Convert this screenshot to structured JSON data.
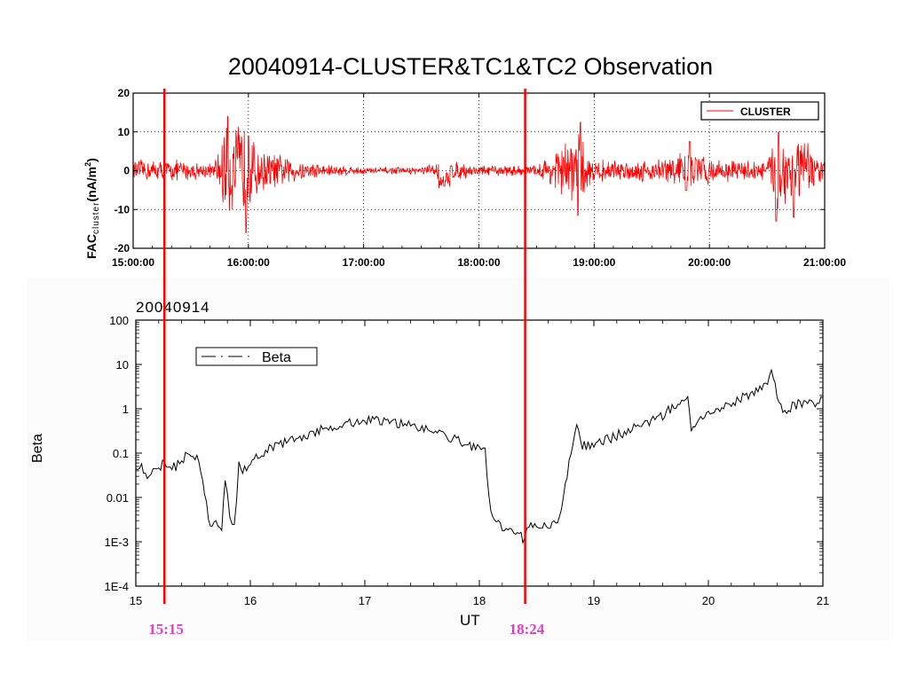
{
  "title": "20040914-CLUSTER&TC1&TC2 Observation",
  "chart_data": [
    {
      "type": "line",
      "name_id": "fac",
      "ylabel": {
        "main": "FAC",
        "sub": "cluster",
        "unit": "(nA/m",
        "sup": "2",
        "close": ")"
      },
      "ylim": [
        -20,
        20
      ],
      "xlim": [
        15,
        21
      ],
      "yticks": [
        "20",
        "10",
        "0",
        "-10",
        "-20"
      ],
      "yticks_values": [
        20,
        10,
        0,
        -10,
        -20
      ],
      "xticks": [
        "15:00:00",
        "16:00:00",
        "17:00:00",
        "18:00:00",
        "19:00:00",
        "20:00:00",
        "21:00:00"
      ],
      "xticks_values": [
        15,
        16,
        17,
        18,
        19,
        20,
        21
      ],
      "grid": true,
      "legend": {
        "position": "top-right",
        "label": "CLUSTER"
      },
      "series": [
        {
          "name": "CLUSTER",
          "color": "#ff0000",
          "envelope": [
            {
              "x": 15.0,
              "amp": 3
            },
            {
              "x": 15.4,
              "amp": 3
            },
            {
              "x": 15.7,
              "amp": 2
            },
            {
              "x": 15.8,
              "amp": 12
            },
            {
              "x": 15.95,
              "amp": 14
            },
            {
              "x": 16.1,
              "amp": 6
            },
            {
              "x": 16.5,
              "amp": 2.5
            },
            {
              "x": 17.0,
              "amp": 1
            },
            {
              "x": 17.5,
              "amp": 1
            },
            {
              "x": 17.7,
              "amp": 3
            },
            {
              "x": 18.0,
              "amp": 1.5
            },
            {
              "x": 18.5,
              "amp": 1.5
            },
            {
              "x": 18.85,
              "amp": 11
            },
            {
              "x": 19.0,
              "amp": 3
            },
            {
              "x": 19.5,
              "amp": 3
            },
            {
              "x": 19.8,
              "amp": 6
            },
            {
              "x": 20.1,
              "amp": 3
            },
            {
              "x": 20.5,
              "amp": 3
            },
            {
              "x": 20.6,
              "amp": 12
            },
            {
              "x": 20.75,
              "amp": 11
            },
            {
              "x": 21.0,
              "amp": 3
            }
          ],
          "features": [
            {
              "x": 15.82,
              "y": 14
            },
            {
              "x": 15.98,
              "y": -16
            },
            {
              "x": 16.0,
              "y": 9
            },
            {
              "x": 17.7,
              "y": -4
            },
            {
              "x": 18.88,
              "y": 12.5
            },
            {
              "x": 18.86,
              "y": -11.5
            },
            {
              "x": 20.58,
              "y": -13
            },
            {
              "x": 20.6,
              "y": 10
            },
            {
              "x": 20.73,
              "y": -12
            },
            {
              "x": 19.83,
              "y": 7.5
            },
            {
              "x": 19.8,
              "y": -5
            }
          ]
        }
      ]
    },
    {
      "type": "line",
      "name_id": "beta",
      "ylabel": "Beta",
      "xlabel": "UT",
      "date_label": "20040914",
      "yscale": "log",
      "ylim": [
        0.0001,
        100
      ],
      "xlim": [
        15,
        21
      ],
      "yticks": [
        "100",
        "10",
        "1",
        "0.1",
        "0.01",
        "1E-3",
        "1E-4"
      ],
      "yticks_values": [
        100,
        10,
        1,
        0.1,
        0.01,
        0.001,
        0.0001
      ],
      "xticks": [
        "15",
        "16",
        "17",
        "18",
        "19",
        "20",
        "21"
      ],
      "xticks_values": [
        15,
        16,
        17,
        18,
        19,
        20,
        21
      ],
      "legend": {
        "position": "top-left",
        "label": "Beta",
        "line_style": "dash-dot"
      },
      "series": [
        {
          "name": "Beta",
          "color": "#000000",
          "points": [
            [
              15.0,
              0.055
            ],
            [
              15.05,
              0.05
            ],
            [
              15.1,
              0.032
            ],
            [
              15.15,
              0.04
            ],
            [
              15.25,
              0.06
            ],
            [
              15.35,
              0.05
            ],
            [
              15.45,
              0.09
            ],
            [
              15.55,
              0.08
            ],
            [
              15.6,
              0.012
            ],
            [
              15.65,
              0.002
            ],
            [
              15.7,
              0.0025
            ],
            [
              15.75,
              0.0018
            ],
            [
              15.78,
              0.03
            ],
            [
              15.82,
              0.004
            ],
            [
              15.86,
              0.002
            ],
            [
              15.9,
              0.05
            ],
            [
              15.95,
              0.04
            ],
            [
              16.0,
              0.07
            ],
            [
              16.1,
              0.1
            ],
            [
              16.3,
              0.18
            ],
            [
              16.5,
              0.25
            ],
            [
              16.7,
              0.4
            ],
            [
              16.9,
              0.5
            ],
            [
              17.05,
              0.55
            ],
            [
              17.2,
              0.5
            ],
            [
              17.4,
              0.45
            ],
            [
              17.6,
              0.3
            ],
            [
              17.8,
              0.2
            ],
            [
              17.95,
              0.13
            ],
            [
              18.05,
              0.11
            ],
            [
              18.1,
              0.004
            ],
            [
              18.2,
              0.002
            ],
            [
              18.3,
              0.0016
            ],
            [
              18.38,
              0.0012
            ],
            [
              18.45,
              0.0022
            ],
            [
              18.55,
              0.0025
            ],
            [
              18.62,
              0.002
            ],
            [
              18.7,
              0.003
            ],
            [
              18.75,
              0.02
            ],
            [
              18.8,
              0.1
            ],
            [
              18.85,
              0.4
            ],
            [
              18.9,
              0.15
            ],
            [
              19.0,
              0.15
            ],
            [
              19.2,
              0.25
            ],
            [
              19.4,
              0.4
            ],
            [
              19.6,
              0.7
            ],
            [
              19.75,
              1.5
            ],
            [
              19.82,
              1.8
            ],
            [
              19.85,
              0.4
            ],
            [
              19.95,
              0.7
            ],
            [
              20.1,
              0.9
            ],
            [
              20.25,
              1.5
            ],
            [
              20.4,
              2.5
            ],
            [
              20.5,
              3
            ],
            [
              20.55,
              6
            ],
            [
              20.6,
              2
            ],
            [
              20.65,
              0.9
            ],
            [
              20.75,
              1.2
            ],
            [
              20.85,
              1.5
            ],
            [
              20.95,
              1.4
            ],
            [
              21.0,
              1.8
            ]
          ]
        }
      ]
    }
  ],
  "markers": [
    {
      "x": 15.25,
      "label": "15:15",
      "color": "#ff0000",
      "label_color": "#e040c8"
    },
    {
      "x": 18.4,
      "label": "18:24",
      "color": "#ff0000",
      "label_color": "#e040c8"
    }
  ]
}
